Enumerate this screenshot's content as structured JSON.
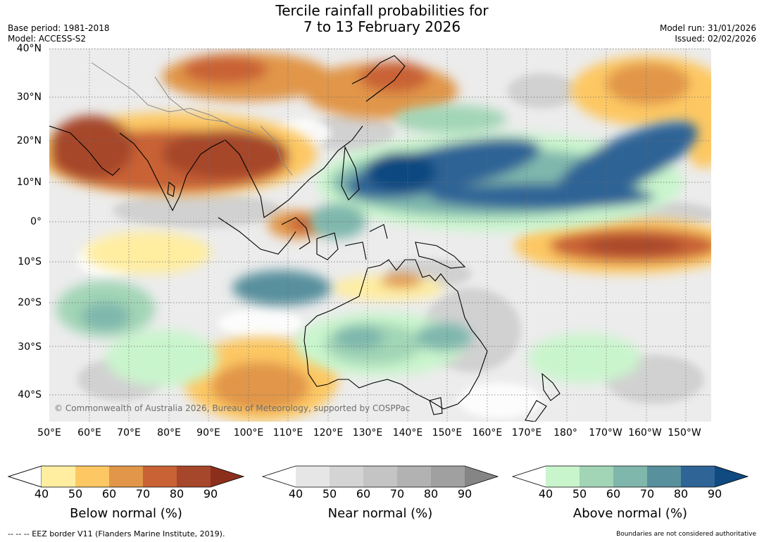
{
  "header": {
    "title_line1": "Tercile rainfall probabilities for",
    "title_line2": "7 to 13 February 2026",
    "base_period": "Base period: 1981-2018",
    "model": "Model: ACCESS-S2",
    "model_run": "Model run: 31/01/2026",
    "issued": "Issued: 02/02/2026"
  },
  "map": {
    "copyright": "© Commonwealth of Australia 2026, Bureau of Meteorology, supported by COSPPac",
    "lat_labels": [
      "40°N",
      "30°N",
      "20°N",
      "10°N",
      "0°",
      "10°S",
      "20°S",
      "30°S",
      "40°S"
    ],
    "lon_labels": [
      "50°E",
      "60°E",
      "70°E",
      "80°E",
      "90°E",
      "100°E",
      "110°E",
      "120°E",
      "130°E",
      "140°E",
      "150°E",
      "160°E",
      "170°E",
      "180°",
      "170°W",
      "160°W",
      "150°W"
    ]
  },
  "colorbars": {
    "below": {
      "title": "Below normal (%)",
      "ticks": [
        "40",
        "50",
        "60",
        "70",
        "80",
        "90"
      ],
      "colors": [
        "#ffeda0",
        "#fdc863",
        "#e19649",
        "#c96234",
        "#a6462a",
        "#8b2f1c"
      ]
    },
    "near": {
      "title": "Near normal (%)",
      "ticks": [
        "40",
        "50",
        "60",
        "70",
        "80",
        "90"
      ],
      "colors": [
        "#e6e6e6",
        "#d4d4d4",
        "#c4c4c4",
        "#b2b2b2",
        "#a0a0a0",
        "#858585"
      ]
    },
    "above": {
      "title": "Above normal (%)",
      "ticks": [
        "40",
        "50",
        "60",
        "70",
        "80",
        "90"
      ],
      "colors": [
        "#c9f5cc",
        "#a2d5b6",
        "#7fb7ad",
        "#58909d",
        "#2f6496",
        "#0f4a80"
      ]
    }
  },
  "footer": {
    "eez_note": "--  --  -- EEZ border V11 (Flanders Marine Institute, 2019).",
    "disclaimer": "Boundaries are not considered authoritative"
  }
}
